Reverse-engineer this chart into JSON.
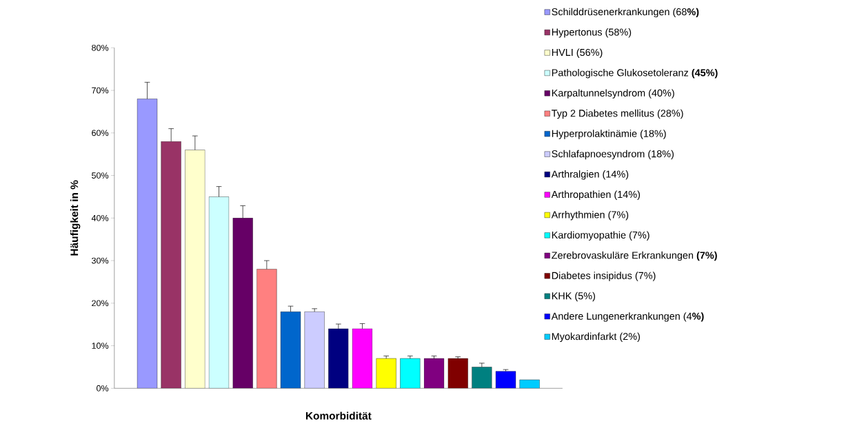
{
  "chart_data": {
    "type": "bar",
    "xlabel": "Komorbidität",
    "ylabel": "Häufigkeit in %",
    "categories": [
      null
    ],
    "ylim": [
      0,
      80
    ],
    "yticks": [
      {
        "value": 0,
        "label": "0%"
      },
      {
        "value": 10,
        "label": "10%"
      },
      {
        "value": 20,
        "label": "20%"
      },
      {
        "value": 30,
        "label": "30%"
      },
      {
        "value": 40,
        "label": "40%"
      },
      {
        "value": 50,
        "label": "50%"
      },
      {
        "value": 60,
        "label": "60%"
      },
      {
        "value": 70,
        "label": "70%"
      },
      {
        "value": 80,
        "label": "80%"
      }
    ],
    "legend": "right",
    "series": [
      {
        "name": "Schilddrüsenerkrankungen (68**%)**",
        "color": "#9999ff",
        "values": [
          68
        ],
        "errors": [
          [
            68,
            71.9
          ]
        ]
      },
      {
        "name": "Hypertonus (58%)",
        "color": "#993366",
        "values": [
          58
        ],
        "errors": [
          [
            58,
            61
          ]
        ]
      },
      {
        "name": "HVLI (56%)",
        "color": "#ffffcc",
        "values": [
          56
        ],
        "errors": [
          [
            56,
            59.3
          ]
        ]
      },
      {
        "name": "Pathologische Glukosetoleranz **(45%)**",
        "color": "#ccffff",
        "values": [
          45
        ],
        "errors": [
          [
            45,
            47.4
          ]
        ]
      },
      {
        "name": "Karpaltunnelsyndrom (40%)",
        "color": "#660066",
        "values": [
          40
        ],
        "errors": [
          [
            40,
            42.9
          ]
        ]
      },
      {
        "name": "Typ 2 Diabetes mellitus (28%)",
        "color": "#ff8080",
        "values": [
          28
        ],
        "errors": [
          [
            28,
            30
          ]
        ]
      },
      {
        "name": "Hyperprolaktinämie (18%)",
        "color": "#0066cc",
        "values": [
          18
        ],
        "errors": [
          [
            18,
            19.3
          ]
        ]
      },
      {
        "name": "Schlafapnoesyndrom (18%)",
        "color": "#ccccff",
        "values": [
          18
        ],
        "errors": [
          [
            18,
            18.7
          ]
        ]
      },
      {
        "name": "Arthralgien (14%)",
        "color": "#000080",
        "values": [
          14
        ],
        "errors": [
          [
            14,
            15.1
          ]
        ]
      },
      {
        "name": "Arthropathien (14%)",
        "color": "#ff00ff",
        "values": [
          14
        ],
        "errors": [
          [
            14,
            15.2
          ]
        ]
      },
      {
        "name": "Arrhythmien (7%)",
        "color": "#ffff00",
        "values": [
          7
        ],
        "errors": [
          [
            7,
            7.6
          ]
        ]
      },
      {
        "name": "Kardiomyopathie (7%)",
        "color": "#00ffff",
        "values": [
          7
        ],
        "errors": [
          [
            7,
            7.6
          ]
        ]
      },
      {
        "name": "Zerebrovaskuläre Erkrankungen **(7%)**",
        "color": "#800080",
        "values": [
          7
        ],
        "errors": [
          [
            7,
            7.6
          ]
        ]
      },
      {
        "name": "Diabetes insipidus (7%)",
        "color": "#800000",
        "values": [
          7
        ],
        "errors": [
          [
            7,
            7.4
          ]
        ]
      },
      {
        "name": "KHK (5%)",
        "color": "#008080",
        "values": [
          5
        ],
        "errors": [
          [
            5,
            5.9
          ]
        ]
      },
      {
        "name": "Andere Lungenerkrankungen (4**%)**",
        "color": "#0000ff",
        "values": [
          4
        ],
        "errors": [
          [
            4,
            4.4
          ]
        ]
      },
      {
        "name": "Myokardinfarkt (2%)",
        "color": "#00ccff",
        "values": [
          2
        ],
        "errors": [
          null
        ]
      }
    ]
  }
}
